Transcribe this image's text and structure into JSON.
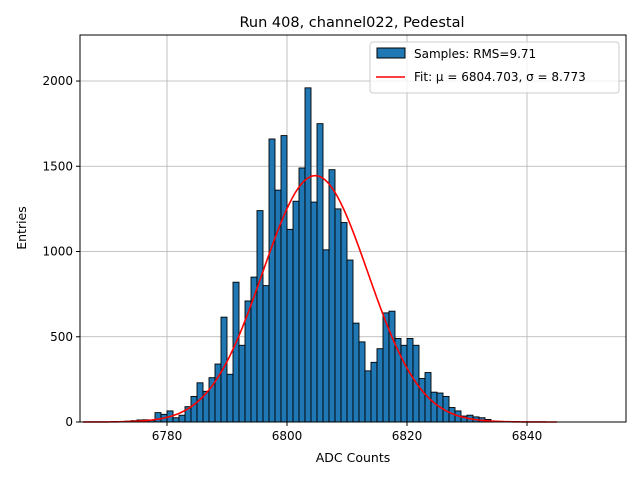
{
  "chart_data": {
    "type": "bar",
    "title": "Run 408, channel022, Pedestal",
    "xlabel": "ADC Counts",
    "ylabel": "Entries",
    "xlim": [
      6765.5,
      6856.5
    ],
    "ylim": [
      0,
      2270
    ],
    "x_ticks": [
      6780,
      6800,
      6820,
      6840
    ],
    "y_ticks": [
      0,
      500,
      1000,
      1500,
      2000
    ],
    "grid": true,
    "legend_position": "top-right",
    "colors": {
      "bars": "#1f77b4",
      "bar_edge": "#000000",
      "fit_line": "#ff0000",
      "grid": "#b0b0b0"
    },
    "histogram": {
      "name": "Samples: RMS=9.71",
      "bin_width": 1,
      "bin_start": 6772,
      "counts": [
        2,
        5,
        8,
        12,
        13,
        10,
        55,
        45,
        65,
        25,
        40,
        90,
        150,
        230,
        180,
        260,
        340,
        615,
        280,
        820,
        450,
        710,
        850,
        1240,
        800,
        1660,
        1360,
        1680,
        1130,
        1295,
        1490,
        1960,
        1290,
        1750,
        1010,
        1480,
        1250,
        1170,
        950,
        580,
        470,
        300,
        350,
        430,
        640,
        650,
        490,
        450,
        490,
        450,
        255,
        290,
        175,
        170,
        150,
        85,
        65,
        35,
        40,
        30,
        25,
        15,
        6,
        3,
        2,
        1
      ]
    },
    "fit": {
      "name": "Fit: μ = 6804.703, σ = 8.773",
      "mu": 6804.703,
      "sigma": 8.773,
      "amplitude": 1445,
      "x_range": [
        6766,
        6845
      ]
    }
  }
}
